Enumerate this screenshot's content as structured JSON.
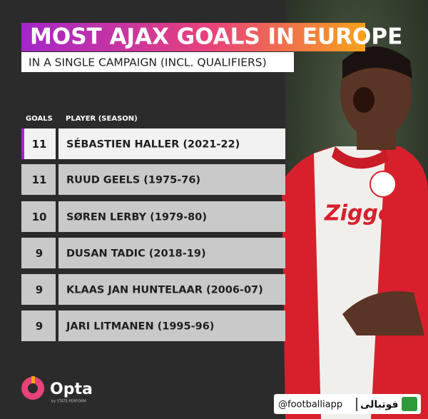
{
  "header": {
    "title": "MOST AJAX GOALS IN EUROPE",
    "subtitle": "IN A SINGLE CAMPAIGN (INCL. QUALIFIERS)"
  },
  "table": {
    "columns": [
      "GOALS",
      "PLAYER (SEASON)"
    ],
    "rows": [
      [
        11,
        "SÉBASTIEN HALLER (2021-22)"
      ],
      [
        11,
        "RUUD GEELS (1975-76)"
      ],
      [
        10,
        "SØREN LERBY (1979-80)"
      ],
      [
        9,
        "DUSAN TADIC (2018-19)"
      ],
      [
        9,
        "KLAAS JAN HUNTELAAR (2006-07)"
      ],
      [
        9,
        "JARI LITMANEN (1995-96)"
      ]
    ]
  },
  "footer": {
    "logo": "Opta",
    "logo_sub": "by STATS PERFORM",
    "watermark_handle": "@footballiapp",
    "watermark_brand": "فوتبالی"
  }
}
